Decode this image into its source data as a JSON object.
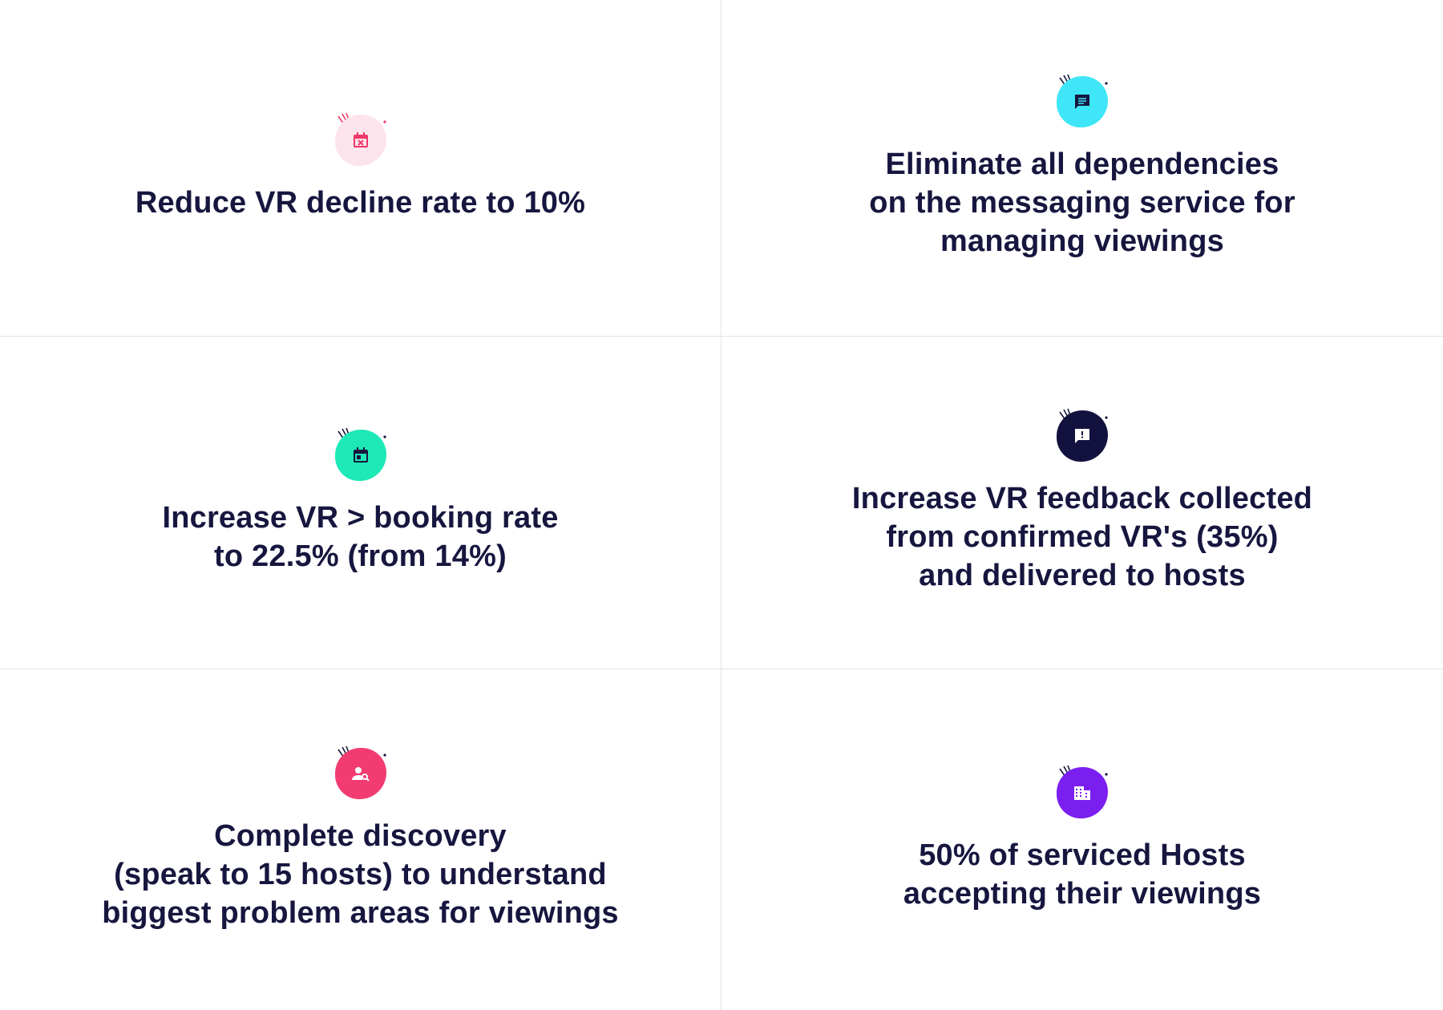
{
  "goals": [
    {
      "icon": "calendar-cancel-icon",
      "bg": "#fde4ec",
      "fg": "#f0386b",
      "lines": [
        "Reduce VR decline rate to 10%"
      ]
    },
    {
      "icon": "chat-message-icon",
      "bg": "#3fe6f7",
      "fg": "#16163f",
      "lines": [
        "Eliminate all dependencies",
        "on the messaging service for",
        "managing viewings"
      ]
    },
    {
      "icon": "calendar-event-icon",
      "bg": "#1de9b6",
      "fg": "#16163f",
      "lines": [
        "Increase VR > booking rate",
        "to 22.5% (from 14%)"
      ]
    },
    {
      "icon": "feedback-alert-icon",
      "bg": "#13123f",
      "fg": "#ffffff",
      "lines": [
        "Increase VR feedback collected",
        "from confirmed VR's (35%)",
        "and delivered to hosts"
      ]
    },
    {
      "icon": "user-search-icon",
      "bg": "#f23c71",
      "fg": "#ffffff",
      "lines": [
        "Complete discovery",
        "(speak to 15 hosts) to understand",
        "biggest problem areas for viewings"
      ]
    },
    {
      "icon": "building-icon",
      "bg": "#7b1ff0",
      "fg": "#ffffff",
      "lines": [
        "50% of serviced Hosts",
        "accepting their viewings"
      ]
    }
  ]
}
